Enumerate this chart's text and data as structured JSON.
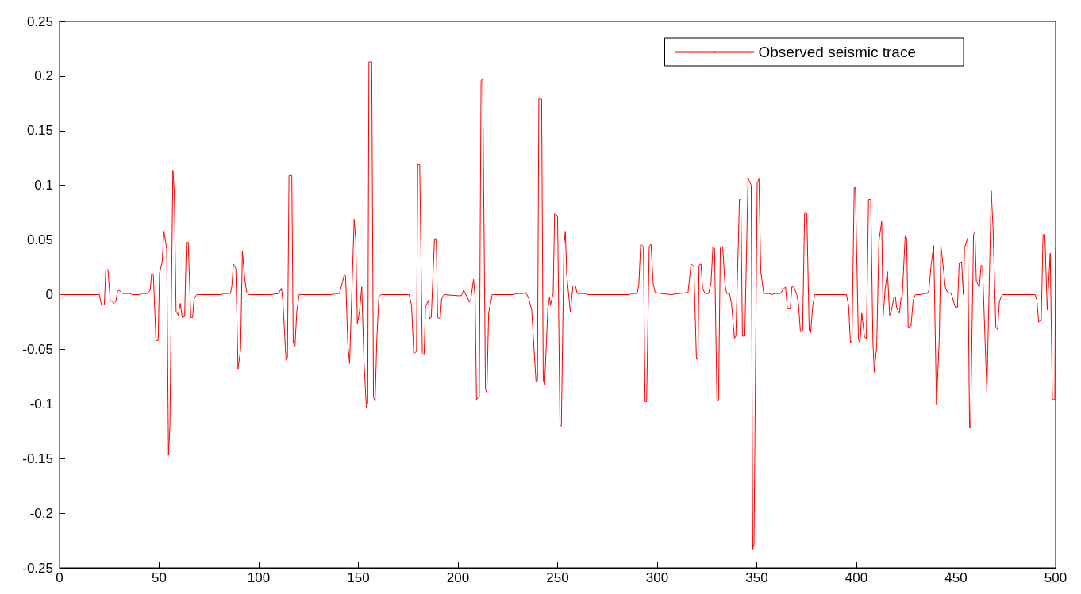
{
  "chart_data": {
    "type": "line",
    "x": [
      0,
      20,
      21.1,
      22.5,
      23.2,
      24.3,
      25.5,
      26.4,
      27.2,
      28.3,
      29.1,
      30,
      31.5,
      35.4,
      36.5,
      40.5,
      41.2,
      44.1,
      45.5,
      46.2,
      47.1,
      48.4,
      49.5,
      50.2,
      51.5,
      52.4,
      53.8,
      54.7,
      55.4,
      56.9,
      57.6,
      58.5,
      59.6,
      60.6,
      61.6,
      62.8,
      63.7,
      64.6,
      65.9,
      66.8,
      67.5,
      68.9,
      81.2,
      82.2,
      85.8,
      86.5,
      87.3,
      88.5,
      89.6,
      90.9,
      91.8,
      93,
      94,
      95.2,
      106,
      110,
      111.4,
      112.1,
      113.7,
      114.4,
      115.2,
      116.6,
      117.3,
      118.2,
      119.1,
      120.3,
      136.9,
      138,
      140.5,
      141.8,
      142.9,
      143.6,
      144.7,
      145.6,
      147.9,
      148.7,
      149.5,
      150.6,
      151.7,
      152.8,
      154,
      154.7,
      155.3,
      156.7,
      157.6,
      158.4,
      159.3,
      160.3,
      161.4,
      175.5,
      176.7,
      177.8,
      179.2,
      179.8,
      180.8,
      182.1,
      183,
      183.7,
      185.2,
      185.7,
      186.6,
      188.2,
      189.1,
      189.8,
      191.1,
      191.8,
      192.9,
      200,
      201.7,
      202.8,
      204.6,
      205.7,
      206.4,
      207.8,
      208.6,
      209.3,
      210.7,
      211.6,
      212.4,
      213.8,
      214.5,
      215.4,
      217.2,
      228,
      229.1,
      233,
      234.1,
      235.6,
      237,
      239.2,
      239.9,
      240.6,
      242,
      242.8,
      243.5,
      245.1,
      246,
      246.4,
      247.8,
      248.5,
      250,
      251.2,
      251.9,
      253.2,
      253.9,
      254.6,
      256.4,
      257.7,
      259,
      259.8,
      263.8,
      265.3,
      286,
      287,
      290,
      290.8,
      291.7,
      293.1,
      293.9,
      294.7,
      296,
      296.9,
      298,
      299,
      302,
      307,
      311,
      315.5,
      317,
      318.4,
      319.7,
      320.5,
      321,
      322,
      322.8,
      324,
      325.8,
      327,
      328,
      328.8,
      330,
      330.8,
      331.7,
      332.9,
      334,
      334.9,
      336.3,
      337.3,
      338.8,
      339.5,
      341.3,
      342,
      342.8,
      344,
      345.6,
      347.2,
      348,
      348.6,
      350.2,
      351.1,
      352,
      353.5,
      356,
      357.4,
      359,
      361.8,
      363.3,
      364.4,
      365.4,
      366.8,
      367.6,
      368.6,
      370.1,
      370.9,
      371.9,
      373,
      374,
      375.1,
      376.3,
      377,
      378.1,
      379.1,
      395,
      396.1,
      397,
      397.8,
      398.9,
      399.5,
      401,
      401.8,
      402.7,
      404.1,
      405,
      406.1,
      407.2,
      408.3,
      409,
      410.2,
      411.3,
      412.7,
      413.4,
      414.5,
      415.6,
      416.7,
      417.4,
      418.8,
      419.6,
      420.2,
      421.6,
      422.4,
      423,
      424.5,
      425.2,
      426,
      427.4,
      428.5,
      429.6,
      432.5,
      433.5,
      435.6,
      436.4,
      437.5,
      438.8,
      440.2,
      441.6,
      442.4,
      443.3,
      444.7,
      445.8,
      447.6,
      448.7,
      449.8,
      450.7,
      451.6,
      452.8,
      453.7,
      454.3,
      455.9,
      456.8,
      457.3,
      458.8,
      459.5,
      460.2,
      461.7,
      462.6,
      463.3,
      465.5,
      467.7,
      468.6,
      470,
      470.9,
      471.8,
      473.2,
      489.7,
      490.6,
      491.5,
      492.8,
      493.7,
      494.6,
      495.8,
      497.3,
      498.4,
      499.6,
      500
    ],
    "series": [
      {
        "name": "Observed seismic trace",
        "color": "#ff0000",
        "values": [
          0,
          0,
          -0.01,
          -0.009,
          0.022,
          0.023,
          -0.006,
          -0.006,
          -0.008,
          -0.006,
          0.003,
          0.004,
          0.001,
          0.001,
          0,
          0,
          0.001,
          0.001,
          0.004,
          0.019,
          0.018,
          -0.042,
          -0.042,
          0.02,
          0.03,
          0.058,
          0.042,
          -0.147,
          -0.12,
          0.114,
          0.094,
          -0.015,
          -0.019,
          -0.008,
          -0.021,
          -0.02,
          0.048,
          0.048,
          -0.021,
          -0.021,
          -0.004,
          0,
          0,
          0.001,
          0.001,
          0.008,
          0.028,
          0.024,
          -0.068,
          -0.05,
          0.04,
          0.014,
          0.002,
          0,
          0,
          0.001,
          0.006,
          -0.005,
          -0.06,
          -0.058,
          0.109,
          0.109,
          -0.044,
          -0.047,
          -0.015,
          0,
          0,
          0.001,
          0.001,
          0.01,
          0.018,
          0.017,
          -0.045,
          -0.063,
          0.069,
          0.05,
          -0.027,
          -0.015,
          0.007,
          -0.06,
          -0.103,
          -0.099,
          0.213,
          0.213,
          -0.094,
          -0.098,
          -0.04,
          -0.002,
          0,
          0,
          -0.01,
          -0.054,
          -0.052,
          0.119,
          0.119,
          -0.053,
          -0.055,
          -0.011,
          -0.005,
          -0.022,
          -0.021,
          0.051,
          0.051,
          -0.021,
          -0.022,
          -0.004,
          0,
          -0.001,
          -0.001,
          0.004,
          -0.002,
          -0.007,
          -0.005,
          0.014,
          -0.002,
          -0.096,
          -0.093,
          0.196,
          0.197,
          -0.086,
          -0.09,
          -0.017,
          0,
          0,
          0.001,
          0.001,
          0.002,
          -0.004,
          -0.014,
          -0.08,
          -0.078,
          0.179,
          0.179,
          -0.078,
          -0.083,
          -0.013,
          -0.002,
          -0.01,
          0.001,
          0.074,
          0.072,
          -0.12,
          -0.12,
          0.045,
          0.058,
          0.018,
          -0.016,
          0.008,
          0.008,
          0.001,
          0.001,
          0,
          0,
          0.001,
          0.001,
          0.01,
          0.046,
          0.044,
          -0.098,
          -0.098,
          0.044,
          0.046,
          0.01,
          0.002,
          0.001,
          0,
          0.001,
          0.002,
          0.028,
          0.026,
          -0.059,
          -0.059,
          0.027,
          0.028,
          0.006,
          0.001,
          0.001,
          0.01,
          0.044,
          0.042,
          -0.097,
          -0.097,
          0.043,
          0.044,
          0.01,
          0.001,
          0.001,
          -0.008,
          -0.04,
          -0.038,
          0.087,
          0.087,
          -0.038,
          -0.038,
          0.107,
          0.1,
          -0.233,
          -0.228,
          0.102,
          0.106,
          0.021,
          0.001,
          0.001,
          0,
          0.001,
          0.001,
          0.005,
          0.007,
          -0.013,
          -0.013,
          0.007,
          0.007,
          0,
          -0.008,
          -0.034,
          -0.033,
          0.075,
          0.075,
          -0.033,
          -0.035,
          -0.01,
          0,
          0,
          -0.01,
          -0.044,
          -0.042,
          0.098,
          0.098,
          -0.041,
          -0.044,
          -0.017,
          -0.039,
          -0.04,
          0.087,
          0.087,
          -0.044,
          -0.071,
          -0.047,
          0.049,
          0.067,
          -0.02,
          0.006,
          0.021,
          -0.019,
          -0.016,
          -0.003,
          -0.002,
          -0.012,
          -0.017,
          -0.003,
          -0.002,
          0.054,
          0.052,
          -0.03,
          -0.029,
          -0.005,
          0,
          0,
          0.001,
          0.001,
          0.004,
          0.027,
          0.045,
          -0.101,
          -0.04,
          0.045,
          0.03,
          0.006,
          0.002,
          0.001,
          -0.006,
          -0.012,
          -0.012,
          0.029,
          0.03,
          0,
          0.043,
          0.052,
          -0.122,
          -0.122,
          0.055,
          0.057,
          0.012,
          0.007,
          0.027,
          0.026,
          -0.089,
          0.095,
          0.06,
          -0.03,
          -0.032,
          -0.006,
          0,
          0,
          -0.005,
          -0.025,
          -0.023,
          0.055,
          0.055,
          -0.014,
          0.038,
          -0.096,
          -0.096,
          0.043
        ]
      }
    ],
    "xlim": [
      0,
      500
    ],
    "xticks": [
      0,
      50,
      100,
      150,
      200,
      250,
      300,
      350,
      400,
      450,
      500
    ],
    "ylim": [
      -0.25,
      0.25
    ],
    "yticks": [
      -0.25,
      -0.2,
      -0.15,
      -0.1,
      -0.05,
      0,
      0.05,
      0.1,
      0.15,
      0.2,
      0.25
    ],
    "legend": "top right",
    "grid": false,
    "marker": "none",
    "line_style": "solid"
  }
}
